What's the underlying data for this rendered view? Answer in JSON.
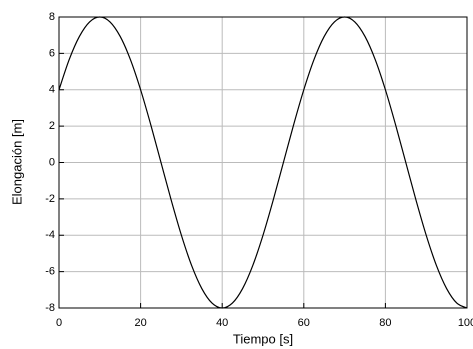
{
  "chart_data": {
    "type": "line",
    "x_label": "Tiempo [s]",
    "y_label": "Elongación [m]",
    "x": [
      0,
      2.5,
      5,
      7.5,
      10,
      12.5,
      15,
      17.5,
      20,
      22.5,
      25,
      27.5,
      30,
      32.5,
      35,
      37.5,
      40,
      42.5,
      45,
      47.5,
      50,
      52.5,
      55,
      57.5,
      60,
      62.5,
      65,
      67.5,
      70,
      72.5,
      75,
      77.5,
      80,
      82.5,
      85,
      87.5,
      90,
      92.5,
      95,
      97.5,
      100
    ],
    "series": [
      {
        "color": "#000000",
        "values": [
          4,
          5.66,
          6.93,
          7.73,
          8,
          7.73,
          6.93,
          5.66,
          4,
          2.07,
          0,
          -2.07,
          -4,
          -5.66,
          -6.93,
          -7.73,
          -8,
          -7.73,
          -6.93,
          -5.66,
          -4,
          -2.07,
          0,
          2.07,
          4,
          5.66,
          6.93,
          7.73,
          8,
          7.73,
          6.93,
          5.66,
          4,
          2.07,
          0,
          -2.07,
          -4,
          -5.66,
          -6.93,
          -7.73,
          -8
        ]
      }
    ],
    "xlim": [
      0,
      100
    ],
    "ylim": [
      -8,
      8
    ],
    "xticks": [
      0,
      20,
      40,
      60,
      80,
      100
    ],
    "yticks": [
      -8,
      -6,
      -4,
      -2,
      0,
      2,
      4,
      6,
      8
    ],
    "grid": true
  }
}
